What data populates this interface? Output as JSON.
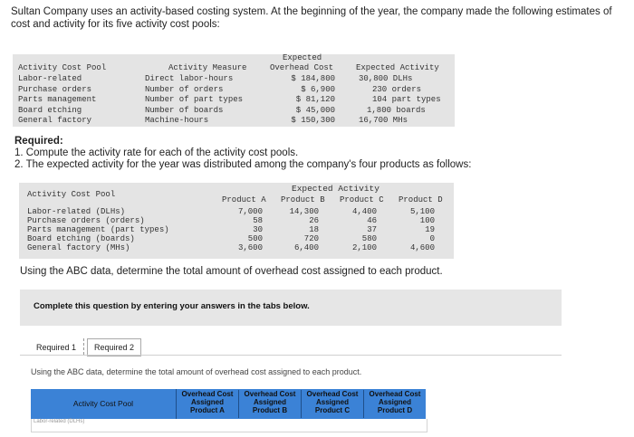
{
  "intro": "Sultan Company uses an activity-based costing system. At the beginning of the year, the company made the following estimates of cost and activity for its five activity cost pools:",
  "table1": {
    "headers": {
      "pool": "Activity Cost Pool",
      "measure": "Activity Measure",
      "overhead_line1": "Expected",
      "overhead_line2": "Overhead Cost",
      "activity": "Expected Activity"
    },
    "rows": [
      {
        "pool": "Labor-related",
        "measure": "Direct labor-hours",
        "overhead": "$ 184,800",
        "activity": "30,800 DLHs"
      },
      {
        "pool": "Purchase orders",
        "measure": "Number of orders",
        "overhead": "$ 6,900",
        "activity": "230 orders"
      },
      {
        "pool": "Parts management",
        "measure": "Number of part types",
        "overhead": "$ 81,120",
        "activity": "104 part types"
      },
      {
        "pool": "Board etching",
        "measure": "Number of boards",
        "overhead": "$ 45,000",
        "activity": "1,800 boards"
      },
      {
        "pool": "General factory",
        "measure": "Machine-hours",
        "overhead": "$ 150,300",
        "activity": "16,700 MHs"
      }
    ]
  },
  "required": {
    "title": "Required:",
    "item1": "1. Compute the activity rate for each of the activity cost pools.",
    "item2": "2. The expected activity for the year was distributed among the company's four products as follows:"
  },
  "table2": {
    "group_header": "Expected Activity",
    "pool_header": "Activity Cost Pool",
    "products": [
      "Product A",
      "Product B",
      "Product C",
      "Product D"
    ],
    "rows": [
      {
        "pool": "Labor-related (DLHs)",
        "values": [
          "7,000",
          "14,300",
          "4,400",
          "5,100"
        ]
      },
      {
        "pool": "Purchase orders (orders)",
        "values": [
          "58",
          "26",
          "46",
          "100"
        ]
      },
      {
        "pool": "Parts management (part types)",
        "values": [
          "30",
          "18",
          "37",
          "19"
        ]
      },
      {
        "pool": "Board etching (boards)",
        "values": [
          "500",
          "720",
          "580",
          "0"
        ]
      },
      {
        "pool": "General factory (MHs)",
        "values": [
          "3,600",
          "6,400",
          "2,100",
          "4,600"
        ]
      }
    ]
  },
  "question": "Using the ABC data, determine the total amount of overhead cost assigned to each product.",
  "complete_text": "Complete this question by entering your answers in the tabs below.",
  "tabs": {
    "required1": "Required 1",
    "required2": "Required 2"
  },
  "instruction": "Using the ABC data, determine the total amount of overhead cost assigned to each product.",
  "answer_table": {
    "pool_header": "Activity Cost Pool",
    "columns": [
      {
        "l1": "Overhead Cost",
        "l2": "Assigned",
        "l3": "Product A"
      },
      {
        "l1": "Overhead Cost",
        "l2": "Assigned",
        "l3": "Product B"
      },
      {
        "l1": "Overhead Cost",
        "l2": "Assigned",
        "l3": "Product C"
      },
      {
        "l1": "Overhead Cost",
        "l2": "Assigned",
        "l3": "Product D"
      }
    ],
    "first_row_partial": "Labor-related (DLHs)"
  },
  "colors": {
    "header_blue": "#3b82d6",
    "panel_gray": "#e4e4e4"
  }
}
